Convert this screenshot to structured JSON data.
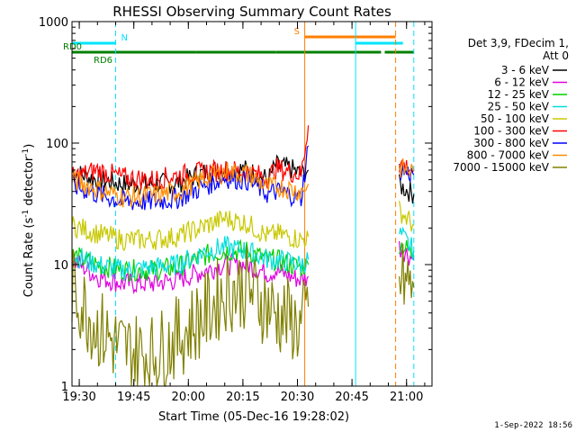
{
  "chart_data": {
    "type": "line",
    "title": "RHESSI Observing Summary Count Rates",
    "xlabel": "Start Time (05-Dec-16 19:28:02)",
    "ylabel": "Count Rate (s",
    "ylabel_sup1": "-1",
    "ylabel_mid": " detector",
    "ylabel_sup2": "-1",
    "ylabel_end": ")",
    "y_scale": "log",
    "ylim": [
      1,
      1000
    ],
    "xlim": [
      "19:28",
      "21:07"
    ],
    "x_ticks": [
      "19:30",
      "19:45",
      "20:00",
      "20:15",
      "20:30",
      "20:45",
      "21:00"
    ],
    "y_ticks": [
      "1",
      "10",
      "100",
      "1000"
    ],
    "footer": "1-Sep-2022 18:56",
    "legend_header": [
      "Det 3,9, FDecim 1,",
      "Att 0"
    ],
    "flags": [
      {
        "label": "N",
        "color": "#00e5ff",
        "segments": [
          [
            "19:28",
            "19:40"
          ],
          [
            "20:46",
            "20:59"
          ]
        ]
      },
      {
        "label": "RD0",
        "color": "#008000",
        "segments": [
          [
            "19:28",
            "20:02"
          ],
          [
            "20:02",
            "20:24"
          ],
          [
            "20:24",
            "20:53"
          ],
          [
            "20:54",
            "21:02"
          ]
        ]
      },
      {
        "label": "RD6",
        "color": "#008000",
        "segments": []
      },
      {
        "label": "S",
        "color": "#ff7f00",
        "segments": [
          [
            "20:32",
            "20:57"
          ]
        ]
      }
    ],
    "series": [
      {
        "name": "3 - 6 keV",
        "color": "#000000",
        "x": [
          "19:28",
          "19:35",
          "19:42",
          "19:50",
          "19:57",
          "20:05",
          "20:10",
          "20:16",
          "20:22",
          "20:24",
          "20:28",
          "20:31",
          "20:33",
          "20:58",
          "21:02"
        ],
        "y": [
          58,
          50,
          46,
          46,
          47,
          58,
          62,
          60,
          50,
          65,
          62,
          55,
          60,
          45,
          38
        ]
      },
      {
        "name": "6 - 12 keV",
        "color": "#e000e0",
        "x": [
          "19:28",
          "19:35",
          "19:42",
          "19:50",
          "19:57",
          "20:05",
          "20:10",
          "20:16",
          "20:22",
          "20:24",
          "20:28",
          "20:31",
          "20:33",
          "20:58",
          "21:02"
        ],
        "y": [
          11,
          8,
          7,
          7,
          7.5,
          9,
          10,
          10,
          8.5,
          9,
          8,
          7.5,
          8,
          14,
          11
        ]
      },
      {
        "name": "12 - 25 keV",
        "color": "#00d000",
        "x": [
          "19:28",
          "19:35",
          "19:42",
          "19:50",
          "19:57",
          "20:05",
          "20:10",
          "20:16",
          "20:22",
          "20:24",
          "20:28",
          "20:31",
          "20:33",
          "20:58",
          "21:02"
        ],
        "y": [
          12,
          10,
          9,
          9,
          9.5,
          12,
          13,
          13,
          11,
          11,
          10,
          9.5,
          10,
          15,
          12
        ]
      },
      {
        "name": "25 - 50 keV",
        "color": "#00dddd",
        "x": [
          "19:28",
          "19:35",
          "19:42",
          "19:50",
          "19:57",
          "20:05",
          "20:10",
          "20:16",
          "20:22",
          "20:24",
          "20:28",
          "20:31",
          "20:33",
          "20:58",
          "21:02"
        ],
        "y": [
          12,
          10,
          9,
          9.5,
          10,
          13,
          14,
          13,
          11,
          11,
          10.5,
          10,
          11,
          18,
          13
        ]
      },
      {
        "name": "50 - 100 keV",
        "color": "#c8c800",
        "x": [
          "19:28",
          "19:35",
          "19:42",
          "19:50",
          "19:57",
          "20:05",
          "20:10",
          "20:16",
          "20:22",
          "20:24",
          "20:28",
          "20:31",
          "20:33",
          "20:58",
          "21:02"
        ],
        "y": [
          21,
          18,
          16,
          16,
          17,
          21,
          24,
          22,
          17,
          18,
          17,
          16,
          17,
          28,
          21
        ]
      },
      {
        "name": "100 - 300 keV",
        "color": "#ff0000",
        "x": [
          "19:28",
          "19:35",
          "19:42",
          "19:50",
          "19:57",
          "20:05",
          "20:10",
          "20:16",
          "20:22",
          "20:24",
          "20:28",
          "20:31",
          "20:33",
          "20:58",
          "21:02"
        ],
        "y": [
          52,
          60,
          52,
          50,
          54,
          58,
          60,
          58,
          52,
          62,
          58,
          55,
          140,
          68,
          60
        ]
      },
      {
        "name": "300 - 800 keV",
        "color": "#0000ff",
        "x": [
          "19:28",
          "19:35",
          "19:42",
          "19:50",
          "19:57",
          "20:05",
          "20:10",
          "20:16",
          "20:22",
          "20:24",
          "20:28",
          "20:31",
          "20:33",
          "20:58",
          "21:02"
        ],
        "y": [
          45,
          38,
          33,
          33,
          35,
          45,
          52,
          50,
          38,
          40,
          38,
          35,
          95,
          60,
          55
        ]
      },
      {
        "name": "800 - 7000 keV",
        "color": "#ff8c00",
        "x": [
          "19:28",
          "19:35",
          "19:42",
          "19:50",
          "19:57",
          "20:05",
          "20:10",
          "20:16",
          "20:22",
          "20:24",
          "20:28",
          "20:31",
          "20:33",
          "20:58",
          "21:02"
        ],
        "y": [
          50,
          42,
          36,
          37,
          40,
          52,
          58,
          56,
          43,
          44,
          42,
          40,
          46,
          62,
          58
        ]
      },
      {
        "name": "7000 - 15000 keV",
        "color": "#808000",
        "x": [
          "19:28",
          "19:35",
          "19:42",
          "19:50",
          "19:57",
          "20:05",
          "20:10",
          "20:16",
          "20:22",
          "20:24",
          "20:28",
          "20:31",
          "20:33",
          "20:58",
          "21:02"
        ],
        "y": [
          6.5,
          3,
          2,
          1.8,
          2.5,
          4,
          6,
          6.5,
          4.5,
          4,
          3.5,
          3,
          4.5,
          7.5,
          6.5
        ]
      }
    ]
  }
}
